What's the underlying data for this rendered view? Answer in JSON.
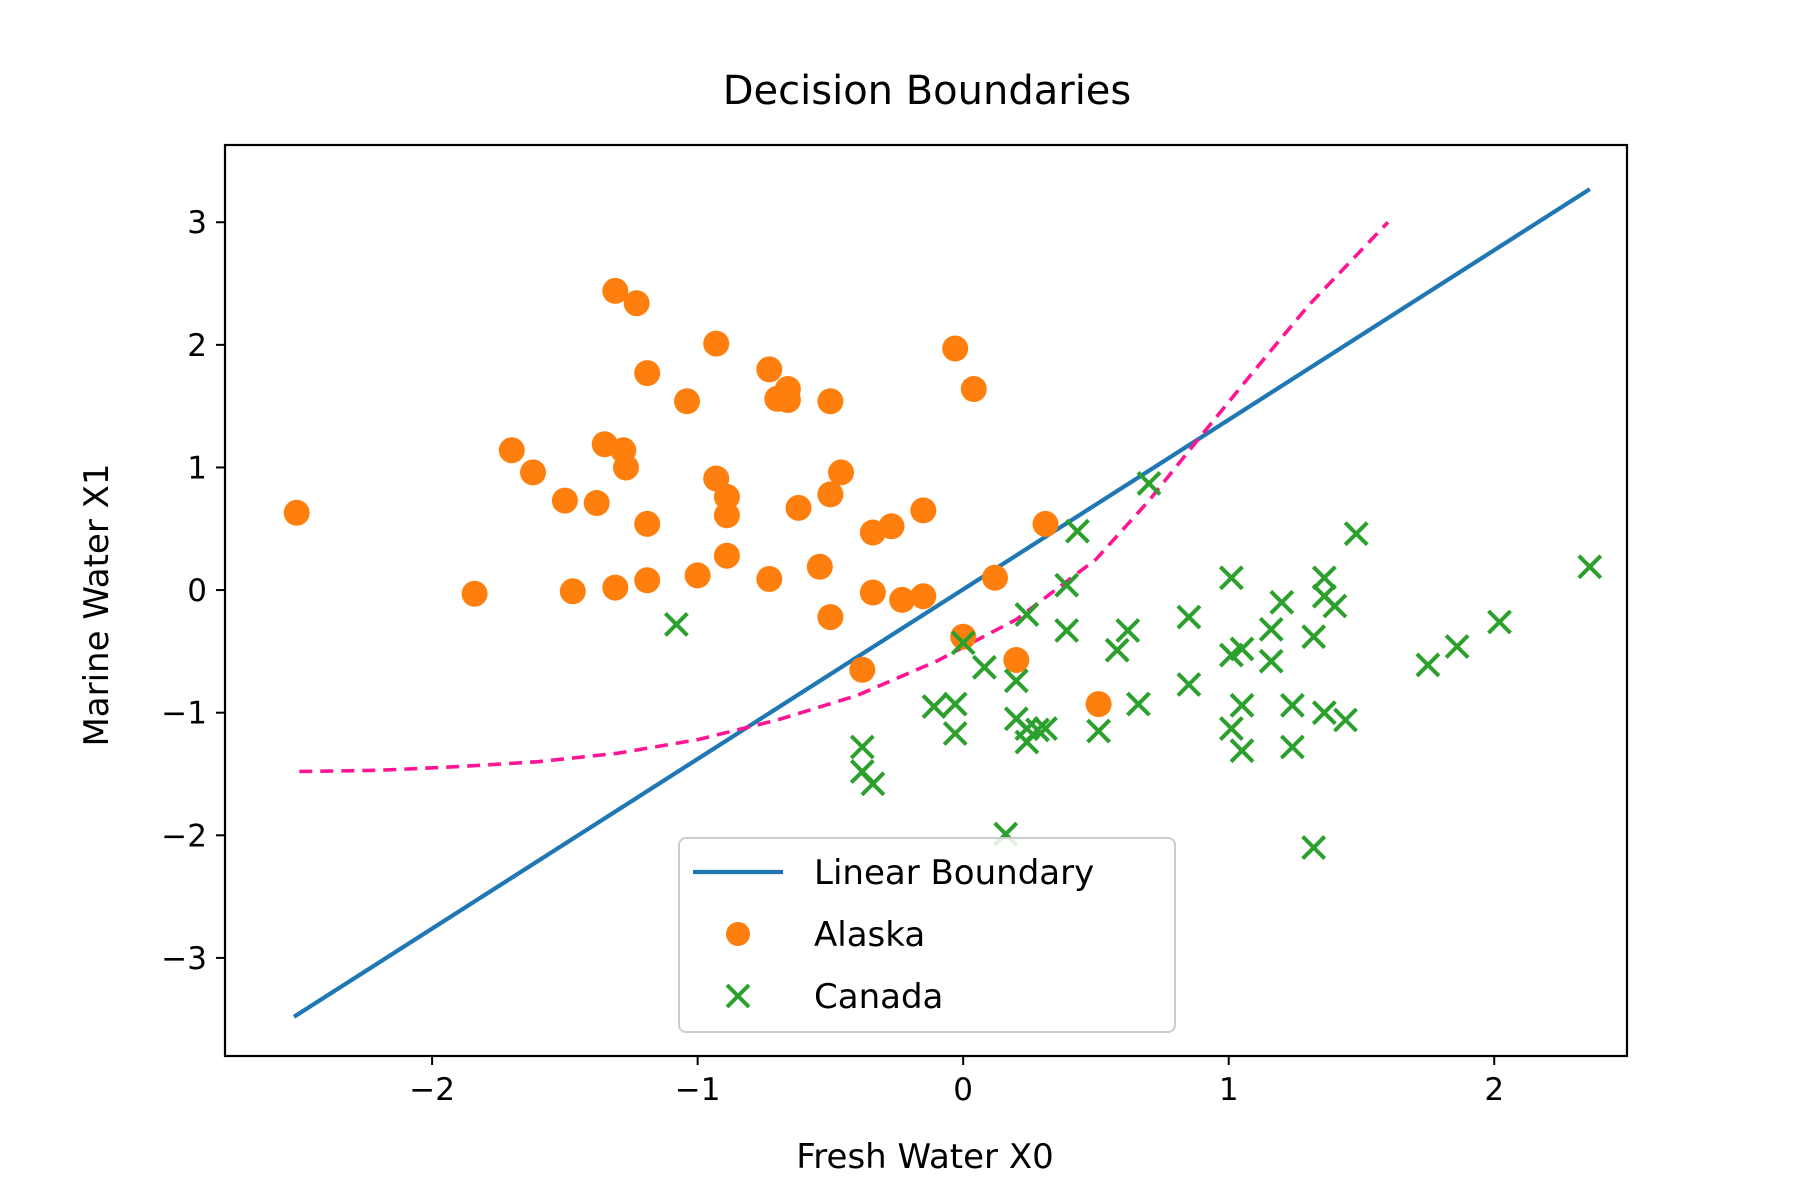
{
  "chart_data": {
    "type": "scatter",
    "title": "Decision Boundaries",
    "xlabel": "Fresh Water X0",
    "ylabel": "Marine Water X1",
    "xlim": [
      -2.78,
      2.5
    ],
    "ylim": [
      -3.8,
      3.63
    ],
    "xticks": [
      -2,
      -1,
      0,
      1,
      2
    ],
    "yticks": [
      -3,
      -2,
      -1,
      0,
      1,
      2,
      3
    ],
    "xtick_labels": [
      "−2",
      "−1",
      "0",
      "1",
      "2"
    ],
    "ytick_labels": [
      "−3",
      "−2",
      "−1",
      "0",
      "1",
      "2",
      "3"
    ],
    "grid": false,
    "legend_position": "lower-center",
    "colors": {
      "linear": "#1f77b4",
      "alaska": "#ff7f0e",
      "canada": "#2ca02c",
      "curve": "#ff1493"
    },
    "series": [
      {
        "name": "Linear Boundary",
        "kind": "line",
        "points": [
          [
            -2.52,
            -3.48
          ],
          [
            2.36,
            3.27
          ]
        ]
      },
      {
        "name": "",
        "kind": "dashed-line",
        "points": [
          [
            -2.5,
            -1.48
          ],
          [
            -2.2,
            -1.47
          ],
          [
            -1.9,
            -1.44
          ],
          [
            -1.6,
            -1.4
          ],
          [
            -1.3,
            -1.33
          ],
          [
            -1.0,
            -1.22
          ],
          [
            -0.7,
            -1.06
          ],
          [
            -0.4,
            -0.86
          ],
          [
            -0.1,
            -0.58
          ],
          [
            0.2,
            -0.24
          ],
          [
            0.5,
            0.25
          ],
          [
            0.7,
            0.73
          ],
          [
            0.9,
            1.27
          ],
          [
            1.1,
            1.8
          ],
          [
            1.3,
            2.32
          ],
          [
            1.6,
            3.0
          ]
        ]
      },
      {
        "name": "Alaska",
        "kind": "scatter-circle",
        "points": [
          [
            -2.51,
            0.63
          ],
          [
            -1.84,
            -0.03
          ],
          [
            -1.7,
            1.14
          ],
          [
            -1.62,
            0.96
          ],
          [
            -1.5,
            0.73
          ],
          [
            -1.47,
            -0.01
          ],
          [
            -1.38,
            0.71
          ],
          [
            -1.35,
            1.19
          ],
          [
            -1.31,
            2.44
          ],
          [
            -1.31,
            0.02
          ],
          [
            -1.28,
            1.14
          ],
          [
            -1.27,
            1.0
          ],
          [
            -1.23,
            2.34
          ],
          [
            -1.19,
            1.77
          ],
          [
            -1.19,
            0.54
          ],
          [
            -1.19,
            0.08
          ],
          [
            -1.04,
            1.54
          ],
          [
            -1.0,
            0.12
          ],
          [
            -0.93,
            2.01
          ],
          [
            -0.93,
            0.91
          ],
          [
            -0.89,
            0.76
          ],
          [
            -0.89,
            0.61
          ],
          [
            -0.89,
            0.28
          ],
          [
            -0.73,
            1.8
          ],
          [
            -0.73,
            0.09
          ],
          [
            -0.7,
            1.56
          ],
          [
            -0.66,
            1.64
          ],
          [
            -0.66,
            1.55
          ],
          [
            -0.62,
            0.67
          ],
          [
            -0.54,
            0.19
          ],
          [
            -0.5,
            1.54
          ],
          [
            -0.5,
            0.78
          ],
          [
            -0.5,
            -0.22
          ],
          [
            -0.46,
            0.96
          ],
          [
            -0.38,
            -0.65
          ],
          [
            -0.34,
            0.47
          ],
          [
            -0.34,
            -0.02
          ],
          [
            -0.27,
            0.52
          ],
          [
            -0.23,
            -0.08
          ],
          [
            -0.15,
            0.65
          ],
          [
            -0.15,
            -0.05
          ],
          [
            -0.03,
            1.97
          ],
          [
            0.0,
            -0.38
          ],
          [
            0.04,
            1.64
          ],
          [
            0.12,
            0.1
          ],
          [
            0.2,
            -0.57
          ],
          [
            0.31,
            0.54
          ],
          [
            0.51,
            -0.93
          ]
        ]
      },
      {
        "name": "Canada",
        "kind": "scatter-x",
        "points": [
          [
            -1.08,
            -0.28
          ],
          [
            -0.38,
            -1.28
          ],
          [
            -0.38,
            -1.48
          ],
          [
            -0.34,
            -1.58
          ],
          [
            -0.11,
            -0.95
          ],
          [
            -0.03,
            -0.93
          ],
          [
            -0.03,
            -1.17
          ],
          [
            0.0,
            -0.43
          ],
          [
            0.08,
            -0.63
          ],
          [
            0.16,
            -1.99
          ],
          [
            0.2,
            -0.74
          ],
          [
            0.2,
            -1.05
          ],
          [
            0.24,
            -0.2
          ],
          [
            0.24,
            -1.13
          ],
          [
            0.24,
            -1.24
          ],
          [
            0.28,
            -1.14
          ],
          [
            0.31,
            -1.13
          ],
          [
            0.39,
            0.04
          ],
          [
            0.39,
            -0.33
          ],
          [
            0.43,
            0.48
          ],
          [
            0.51,
            -1.15
          ],
          [
            0.58,
            -0.49
          ],
          [
            0.62,
            -0.33
          ],
          [
            0.66,
            -0.93
          ],
          [
            0.7,
            0.87
          ],
          [
            0.85,
            -0.22
          ],
          [
            0.85,
            -0.77
          ],
          [
            1.01,
            0.1
          ],
          [
            1.01,
            -0.53
          ],
          [
            1.01,
            -1.13
          ],
          [
            1.05,
            -0.48
          ],
          [
            1.05,
            -0.94
          ],
          [
            1.05,
            -1.31
          ],
          [
            1.16,
            -0.32
          ],
          [
            1.16,
            -0.58
          ],
          [
            1.2,
            -0.1
          ],
          [
            1.24,
            -0.94
          ],
          [
            1.24,
            -1.28
          ],
          [
            1.32,
            -0.38
          ],
          [
            1.32,
            -2.1
          ],
          [
            1.36,
            0.1
          ],
          [
            1.36,
            -0.05
          ],
          [
            1.36,
            -1.0
          ],
          [
            1.4,
            -0.13
          ],
          [
            1.44,
            -1.06
          ],
          [
            1.48,
            0.46
          ],
          [
            1.75,
            -0.61
          ],
          [
            1.86,
            -0.46
          ],
          [
            2.02,
            -0.26
          ],
          [
            2.36,
            0.19
          ]
        ]
      }
    ]
  }
}
